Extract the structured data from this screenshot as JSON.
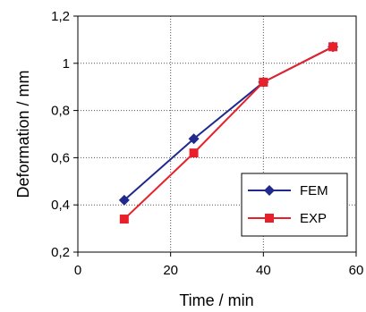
{
  "chart_data": {
    "type": "line",
    "xlabel": "Time / min",
    "ylabel": "Deformation  /  mm",
    "xlim": [
      0,
      60
    ],
    "ylim": [
      0.2,
      1.2
    ],
    "x_ticks": [
      0,
      20,
      40,
      60
    ],
    "y_ticks": [
      0.2,
      0.4,
      0.6,
      0.8,
      1.0,
      1.2
    ],
    "x_tick_labels": [
      "0",
      "20",
      "40",
      "60"
    ],
    "y_tick_labels": [
      "0,2",
      "0,4",
      "0,6",
      "0,8",
      "1",
      "1,2"
    ],
    "grid": "dotted, x and y",
    "legend_position": "bottom-right",
    "series": [
      {
        "name": "FEM",
        "color": "#1f2a8c",
        "marker": "diamond",
        "x": [
          10,
          25,
          40,
          55
        ],
        "y": [
          0.42,
          0.68,
          0.92,
          1.07
        ]
      },
      {
        "name": "EXP",
        "color": "#e8202a",
        "marker": "square",
        "x": [
          10,
          25,
          40,
          55
        ],
        "y": [
          0.34,
          0.62,
          0.92,
          1.07
        ]
      }
    ]
  }
}
